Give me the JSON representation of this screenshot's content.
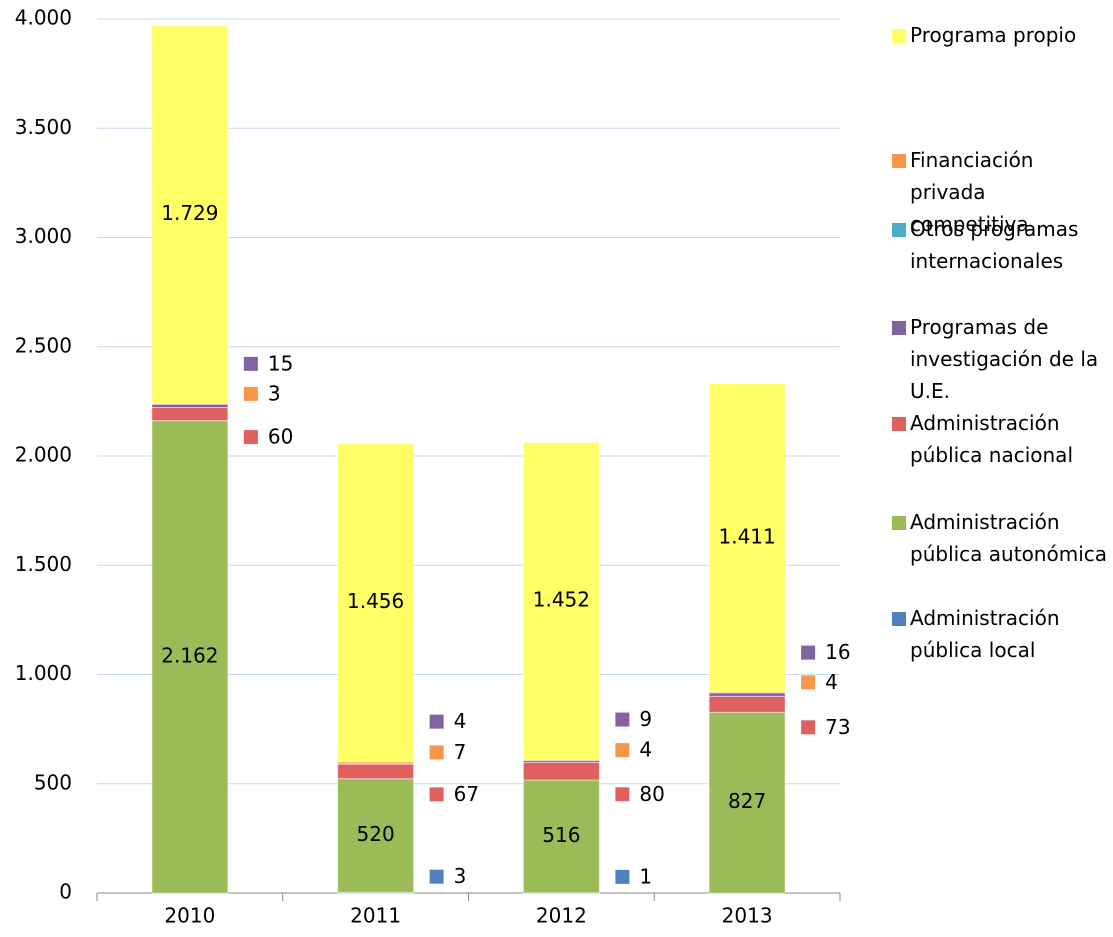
{
  "chart_data": {
    "type": "stacked_bar",
    "categories": [
      "2010",
      "2011",
      "2012",
      "2013"
    ],
    "series": [
      {
        "name": "Administración pública local",
        "color": "#4f81bd",
        "values": [
          null,
          3,
          1,
          null
        ]
      },
      {
        "name": "Administración pública autonómica",
        "color": "#9bbb59",
        "values": [
          2162,
          520,
          516,
          827
        ],
        "value_labels": [
          "2.162",
          "520",
          "516",
          "827"
        ]
      },
      {
        "name": "Administración pública nacional",
        "color": "#e06060",
        "values": [
          60,
          67,
          80,
          73
        ]
      },
      {
        "name": "Programas de investigación de la U.E.",
        "color": "#8064a2",
        "values": [
          15,
          4,
          9,
          16
        ]
      },
      {
        "name": "Otros programas internacionales",
        "color": "#4bacc6",
        "values": [
          null,
          null,
          null,
          null
        ]
      },
      {
        "name": "Financiación privada competitiva",
        "color": "#f79646",
        "values": [
          3,
          7,
          4,
          4
        ]
      },
      {
        "name": "Programa propio",
        "color": "#ffff66",
        "values": [
          1729,
          1456,
          1452,
          1411
        ],
        "value_labels": [
          "1.729",
          "1.456",
          "1.452",
          "1.411"
        ]
      }
    ],
    "ylim": [
      0,
      4000
    ],
    "yticks": [
      0,
      500,
      {
        "value": 1000,
        "label": "1.000"
      },
      {
        "value": 1500,
        "label": "1.500"
      },
      {
        "value": 2000,
        "label": "2.000"
      },
      {
        "value": 2500,
        "label": "2.500"
      },
      {
        "value": 3000,
        "label": "3.000"
      },
      {
        "value": 3500,
        "label": "3.500"
      },
      {
        "value": 4000,
        "label": "4.000"
      }
    ],
    "grid": true,
    "legend": "right"
  }
}
